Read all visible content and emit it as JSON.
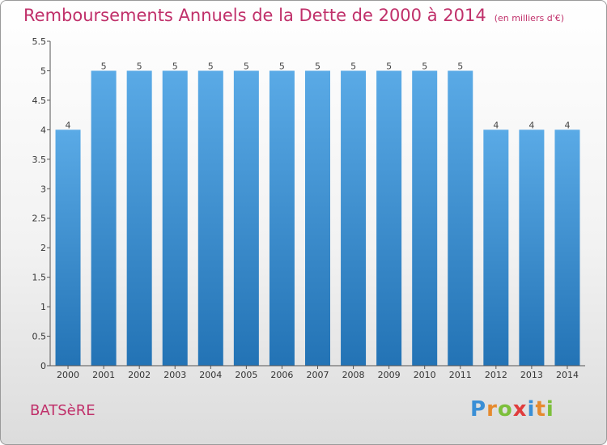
{
  "header": {
    "title": "Remboursements Annuels de la Dette de 2000 à 2014",
    "subtitle": "(en milliers d'€)"
  },
  "footer": {
    "municipality": "BATSèRE",
    "logo": "Proxiti"
  },
  "colors": {
    "accent": "#c0306a",
    "bar_top": "#5aaae6",
    "bar_bottom": "#2373b5"
  },
  "chart_data": {
    "type": "bar",
    "title": "Remboursements Annuels de la Dette de 2000 à 2014",
    "subtitle": "(en milliers d'€)",
    "categories": [
      "2000",
      "2001",
      "2002",
      "2003",
      "2004",
      "2005",
      "2006",
      "2007",
      "2008",
      "2009",
      "2010",
      "2011",
      "2012",
      "2013",
      "2014"
    ],
    "values": [
      4,
      5,
      5,
      5,
      5,
      5,
      5,
      5,
      5,
      5,
      5,
      5,
      4,
      4,
      4
    ],
    "data_labels": [
      "4",
      "5",
      "5",
      "5",
      "5",
      "5",
      "5",
      "5",
      "5",
      "5",
      "5",
      "5",
      "4",
      "4",
      "4"
    ],
    "ylim": [
      0,
      5.5
    ],
    "yticks": [
      "0",
      "0.5",
      "1",
      "1.5",
      "2",
      "2.5",
      "3",
      "3.5",
      "4",
      "4.5",
      "5",
      "5.5"
    ],
    "xlabel": "",
    "ylabel": "",
    "grid": false
  }
}
